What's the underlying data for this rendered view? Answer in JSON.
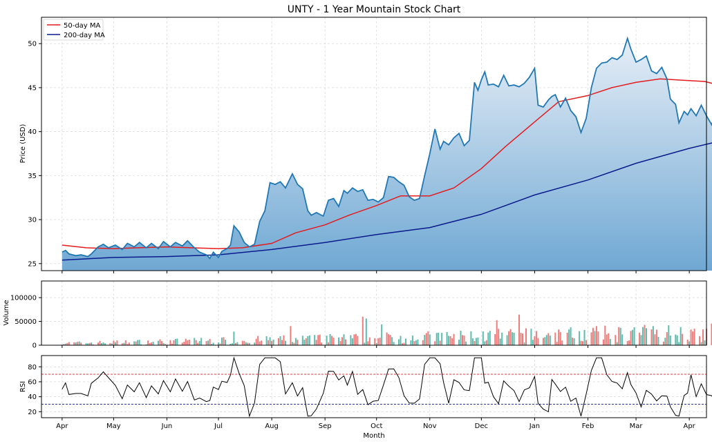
{
  "chart_data": {
    "type": "line",
    "title": "UNTY - 1 Year Mountain Stock Chart",
    "xlabel": "Month",
    "x_ticks": [
      "Apr",
      "May",
      "Jun",
      "Jul",
      "Aug",
      "Sep",
      "Oct",
      "Nov",
      "Dec",
      "Jan",
      "Feb",
      "Mar",
      "Apr"
    ],
    "x_tick_dates": [
      "2024-04-01",
      "2024-05-01",
      "2024-06-01",
      "2024-07-01",
      "2024-08-01",
      "2024-09-01",
      "2024-10-01",
      "2024-11-01",
      "2024-12-01",
      "2025-01-01",
      "2025-02-01",
      "2025-03-01",
      "2025-04-01"
    ],
    "x_range": [
      "2024-03-20",
      "2025-04-11"
    ],
    "colors": {
      "price": "#1f77b4",
      "fill": "#6fa8d3",
      "ma50": "#e41a1c",
      "ma200": "#0a1a8c",
      "volume_up": "#5dbcae",
      "volume_down": "#f07b7b",
      "rsi": "#000000",
      "overbought": "#e41a1c",
      "oversold": "#0a1a8c"
    },
    "price_panel": {
      "ylabel": "Price (USD)",
      "ylim": [
        24.2,
        53.0
      ],
      "yticks": [
        25,
        30,
        35,
        40,
        45,
        50
      ],
      "grid": true,
      "legend_position": "top-left",
      "series": [
        {
          "name": "",
          "points": [
            [
              "2024-04-01",
              26.3
            ],
            [
              "2024-04-03",
              26.5
            ],
            [
              "2024-04-05",
              26.1
            ],
            [
              "2024-04-09",
              25.9
            ],
            [
              "2024-04-12",
              26.0
            ],
            [
              "2024-04-16",
              25.8
            ],
            [
              "2024-04-18",
              26.1
            ],
            [
              "2024-04-22",
              26.9
            ],
            [
              "2024-04-25",
              27.2
            ],
            [
              "2024-04-28",
              26.8
            ],
            [
              "2024-05-02",
              27.1
            ],
            [
              "2024-05-06",
              26.6
            ],
            [
              "2024-05-09",
              27.3
            ],
            [
              "2024-05-13",
              26.9
            ],
            [
              "2024-05-16",
              27.4
            ],
            [
              "2024-05-20",
              26.8
            ],
            [
              "2024-05-23",
              27.3
            ],
            [
              "2024-05-27",
              26.7
            ],
            [
              "2024-05-30",
              27.5
            ],
            [
              "2024-06-03",
              26.9
            ],
            [
              "2024-06-06",
              27.4
            ],
            [
              "2024-06-10",
              27.0
            ],
            [
              "2024-06-13",
              27.6
            ],
            [
              "2024-06-17",
              26.8
            ],
            [
              "2024-06-20",
              26.3
            ],
            [
              "2024-06-24",
              26.0
            ],
            [
              "2024-06-26",
              25.6
            ],
            [
              "2024-06-28",
              26.3
            ],
            [
              "2024-07-01",
              25.7
            ],
            [
              "2024-07-03",
              26.4
            ],
            [
              "2024-07-06",
              26.7
            ],
            [
              "2024-07-08",
              27.1
            ],
            [
              "2024-07-10",
              29.3
            ],
            [
              "2024-07-13",
              28.6
            ],
            [
              "2024-07-16",
              27.4
            ],
            [
              "2024-07-19",
              26.9
            ],
            [
              "2024-07-22",
              27.2
            ],
            [
              "2024-07-25",
              29.8
            ],
            [
              "2024-07-28",
              31.0
            ],
            [
              "2024-07-31",
              34.2
            ],
            [
              "2024-08-03",
              34.0
            ],
            [
              "2024-08-06",
              34.3
            ],
            [
              "2024-08-09",
              33.6
            ],
            [
              "2024-08-13",
              35.2
            ],
            [
              "2024-08-16",
              34.0
            ],
            [
              "2024-08-19",
              33.5
            ],
            [
              "2024-08-22",
              31.0
            ],
            [
              "2024-08-24",
              30.5
            ],
            [
              "2024-08-27",
              30.8
            ],
            [
              "2024-08-31",
              30.4
            ],
            [
              "2024-09-03",
              32.2
            ],
            [
              "2024-09-06",
              32.4
            ],
            [
              "2024-09-09",
              31.5
            ],
            [
              "2024-09-12",
              33.3
            ],
            [
              "2024-09-14",
              33.0
            ],
            [
              "2024-09-17",
              33.6
            ],
            [
              "2024-09-20",
              33.2
            ],
            [
              "2024-09-23",
              33.4
            ],
            [
              "2024-09-26",
              32.2
            ],
            [
              "2024-09-29",
              32.3
            ],
            [
              "2024-10-02",
              32.0
            ],
            [
              "2024-10-05",
              32.5
            ],
            [
              "2024-10-08",
              34.9
            ],
            [
              "2024-10-11",
              34.8
            ],
            [
              "2024-10-14",
              34.3
            ],
            [
              "2024-10-17",
              33.9
            ],
            [
              "2024-10-20",
              32.6
            ],
            [
              "2024-10-23",
              32.2
            ],
            [
              "2024-10-26",
              32.4
            ],
            [
              "2024-10-29",
              35.0
            ],
            [
              "2024-11-01",
              37.5
            ],
            [
              "2024-11-04",
              40.3
            ],
            [
              "2024-11-07",
              38.0
            ],
            [
              "2024-11-09",
              38.9
            ],
            [
              "2024-11-12",
              38.5
            ],
            [
              "2024-11-15",
              39.3
            ],
            [
              "2024-11-18",
              39.8
            ],
            [
              "2024-11-21",
              38.4
            ],
            [
              "2024-11-24",
              39.0
            ],
            [
              "2024-11-27",
              45.6
            ],
            [
              "2024-11-29",
              44.7
            ],
            [
              "2024-12-01",
              45.9
            ],
            [
              "2024-12-03",
              46.8
            ],
            [
              "2024-12-05",
              45.3
            ],
            [
              "2024-12-08",
              45.4
            ],
            [
              "2024-12-11",
              45.1
            ],
            [
              "2024-12-14",
              46.4
            ],
            [
              "2024-12-17",
              45.2
            ],
            [
              "2024-12-20",
              45.3
            ],
            [
              "2024-12-23",
              45.1
            ],
            [
              "2024-12-26",
              45.5
            ],
            [
              "2024-12-29",
              46.2
            ],
            [
              "2025-01-01",
              47.2
            ],
            [
              "2025-01-03",
              43.0
            ],
            [
              "2025-01-06",
              42.8
            ],
            [
              "2025-01-09",
              43.6
            ],
            [
              "2025-01-11",
              44.0
            ],
            [
              "2025-01-13",
              44.2
            ],
            [
              "2025-01-16",
              42.8
            ],
            [
              "2025-01-19",
              43.8
            ],
            [
              "2025-01-22",
              42.4
            ],
            [
              "2025-01-25",
              41.7
            ],
            [
              "2025-01-28",
              39.9
            ],
            [
              "2025-01-31",
              41.5
            ],
            [
              "2025-02-03",
              45.0
            ],
            [
              "2025-02-06",
              47.2
            ],
            [
              "2025-02-09",
              47.8
            ],
            [
              "2025-02-12",
              47.9
            ],
            [
              "2025-02-15",
              48.4
            ],
            [
              "2025-02-18",
              48.2
            ],
            [
              "2025-02-21",
              48.7
            ],
            [
              "2025-02-24",
              50.6
            ],
            [
              "2025-02-26",
              49.4
            ],
            [
              "2025-03-01",
              47.9
            ],
            [
              "2025-03-04",
              48.2
            ],
            [
              "2025-03-07",
              48.6
            ],
            [
              "2025-03-10",
              46.9
            ],
            [
              "2025-03-13",
              46.6
            ],
            [
              "2025-03-16",
              47.3
            ],
            [
              "2025-03-19",
              46.0
            ],
            [
              "2025-03-21",
              43.7
            ],
            [
              "2025-03-24",
              43.1
            ],
            [
              "2025-03-26",
              41.0
            ],
            [
              "2025-03-29",
              42.3
            ],
            [
              "2025-03-31",
              41.9
            ],
            [
              "2025-04-02",
              42.6
            ],
            [
              "2025-04-05",
              41.8
            ],
            [
              "2025-04-08",
              43.0
            ],
            [
              "2025-04-11",
              41.8
            ],
            [
              "2025-04-14",
              40.8
            ],
            [
              "2025-04-16",
              41.8
            ]
          ]
        },
        {
          "name": "50-day MA",
          "points": [
            [
              "2024-04-01",
              27.1
            ],
            [
              "2024-04-15",
              26.8
            ],
            [
              "2024-05-01",
              26.7
            ],
            [
              "2024-05-15",
              26.8
            ],
            [
              "2024-06-01",
              26.9
            ],
            [
              "2024-06-15",
              26.8
            ],
            [
              "2024-07-01",
              26.7
            ],
            [
              "2024-07-15",
              26.8
            ],
            [
              "2024-08-01",
              27.3
            ],
            [
              "2024-08-15",
              28.5
            ],
            [
              "2024-09-01",
              29.4
            ],
            [
              "2024-09-15",
              30.5
            ],
            [
              "2024-10-01",
              31.6
            ],
            [
              "2024-10-15",
              32.7
            ],
            [
              "2024-11-01",
              32.7
            ],
            [
              "2024-11-15",
              33.6
            ],
            [
              "2024-12-01",
              35.8
            ],
            [
              "2024-12-15",
              38.3
            ],
            [
              "2025-01-01",
              41.1
            ],
            [
              "2025-01-15",
              43.4
            ],
            [
              "2025-02-01",
              44.1
            ],
            [
              "2025-02-15",
              45.0
            ],
            [
              "2025-03-01",
              45.6
            ],
            [
              "2025-03-15",
              46.0
            ],
            [
              "2025-04-01",
              45.8
            ],
            [
              "2025-04-10",
              45.7
            ],
            [
              "2025-04-16",
              45.4
            ]
          ]
        },
        {
          "name": "200-day MA",
          "points": [
            [
              "2024-04-01",
              25.4
            ],
            [
              "2024-05-01",
              25.7
            ],
            [
              "2024-06-01",
              25.8
            ],
            [
              "2024-07-01",
              26.0
            ],
            [
              "2024-08-01",
              26.6
            ],
            [
              "2024-09-01",
              27.4
            ],
            [
              "2024-10-01",
              28.3
            ],
            [
              "2024-11-01",
              29.1
            ],
            [
              "2024-12-01",
              30.6
            ],
            [
              "2025-01-01",
              32.8
            ],
            [
              "2025-02-01",
              34.5
            ],
            [
              "2025-03-01",
              36.4
            ],
            [
              "2025-04-01",
              38.1
            ],
            [
              "2025-04-16",
              38.8
            ]
          ]
        }
      ]
    },
    "volume_panel": {
      "ylabel": "Volume",
      "ylim": [
        0,
        135000
      ],
      "yticks": [
        0,
        50000,
        100000
      ],
      "ytick_labels": [
        "0",
        "50000",
        "100000"
      ],
      "grid": true
    },
    "rsi_panel": {
      "ylabel": "RSI",
      "ylim": [
        12,
        95
      ],
      "yticks": [
        20,
        40,
        60,
        80
      ],
      "overbought": 70,
      "oversold": 30,
      "grid": true
    }
  },
  "legend": {
    "ma50_label": "50-day MA",
    "ma200_label": "200-day MA"
  }
}
